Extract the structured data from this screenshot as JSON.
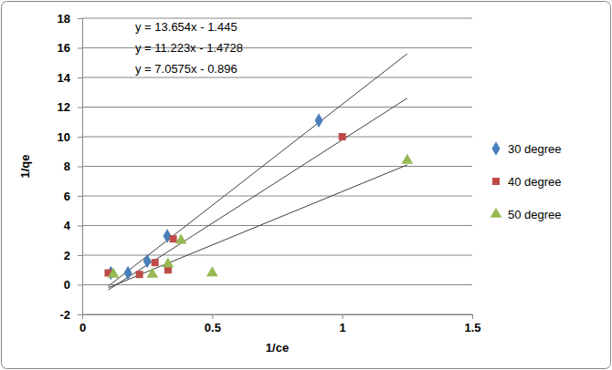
{
  "chart_data": {
    "type": "scatter",
    "x_label": "1/ce",
    "y_label": "1/qe",
    "xlim": [
      0,
      1.5
    ],
    "xticks": [
      0,
      0.5,
      1,
      1.5
    ],
    "ylim": [
      -2,
      18
    ],
    "yticks": [
      -2,
      0,
      2,
      4,
      6,
      8,
      10,
      12,
      14,
      16,
      18
    ],
    "grid": true,
    "legend": "right",
    "annotations": [
      "y = 13.654x - 1.445",
      "y = 11.223x - 1.4728",
      "y = 7.0575x - 0.896"
    ],
    "series": [
      {
        "name": "30 degree",
        "color": "#4a7ebb",
        "marker": "diamond",
        "x": [
          0.11,
          0.176,
          0.25,
          0.327,
          0.91
        ],
        "values": [
          0.8,
          0.8,
          1.6,
          3.3,
          11.1
        ]
      },
      {
        "name": "40 degree",
        "color": "#be4b48",
        "marker": "square",
        "x": [
          0.1,
          0.22,
          0.28,
          0.33,
          0.35,
          1.0
        ],
        "values": [
          0.8,
          0.7,
          1.5,
          1.0,
          3.1,
          10.0
        ]
      },
      {
        "name": "50 degree",
        "color": "#98b954",
        "marker": "triangle",
        "x": [
          0.12,
          0.27,
          0.33,
          0.38,
          0.5,
          1.25
        ],
        "values": [
          0.7,
          0.7,
          1.4,
          3.0,
          0.8,
          8.4
        ]
      }
    ],
    "trendlines": [
      {
        "x": [
          0.1,
          1.25
        ],
        "values": [
          -0.1,
          15.6
        ]
      },
      {
        "x": [
          0.1,
          1.25
        ],
        "values": [
          -0.35,
          12.6
        ]
      },
      {
        "x": [
          0.1,
          1.25
        ],
        "values": [
          -0.2,
          8.1
        ]
      }
    ]
  }
}
